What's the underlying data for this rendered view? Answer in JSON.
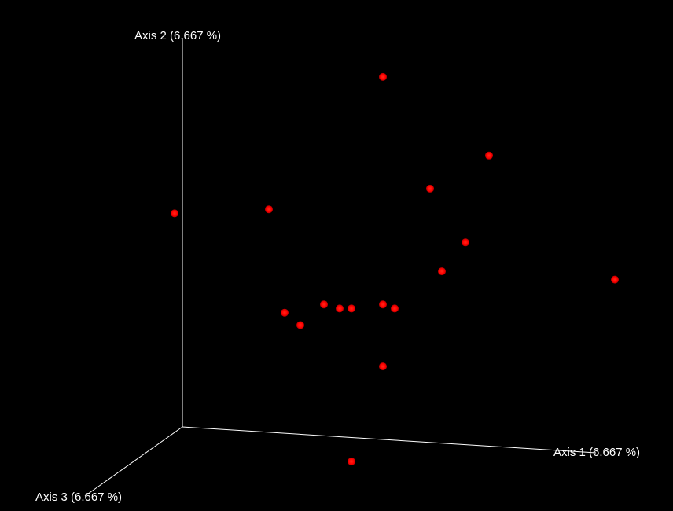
{
  "chart_data": {
    "type": "scatter",
    "title": "",
    "axes": {
      "x_label": "Axis 1 (6.667 %)",
      "y_label": "Axis 2 (6.667 %)",
      "z_label": "Axis 3 (6.667 %)"
    },
    "colors": {
      "background": "#000000",
      "axis": "#ffffff",
      "point": "#ff0000"
    },
    "grid": false,
    "legend": "none",
    "points": [
      {
        "x": 0.05,
        "y": 0.89
      },
      {
        "x": 0.17,
        "y": 0.62
      },
      {
        "x": 0.32,
        "y": 0.7
      },
      {
        "x": -0.48,
        "y": 0.56
      },
      {
        "x": -0.24,
        "y": 0.57
      },
      {
        "x": 0.2,
        "y": 0.42
      },
      {
        "x": 0.26,
        "y": 0.49
      },
      {
        "x": 0.64,
        "y": 0.4
      },
      {
        "x": -0.1,
        "y": 0.34
      },
      {
        "x": -0.06,
        "y": 0.33
      },
      {
        "x": -0.03,
        "y": 0.33
      },
      {
        "x": 0.05,
        "y": 0.34
      },
      {
        "x": 0.08,
        "y": 0.33
      },
      {
        "x": -0.2,
        "y": 0.32
      },
      {
        "x": -0.16,
        "y": 0.29
      },
      {
        "x": 0.05,
        "y": 0.19
      },
      {
        "x": -0.03,
        "y": -0.04
      }
    ]
  }
}
